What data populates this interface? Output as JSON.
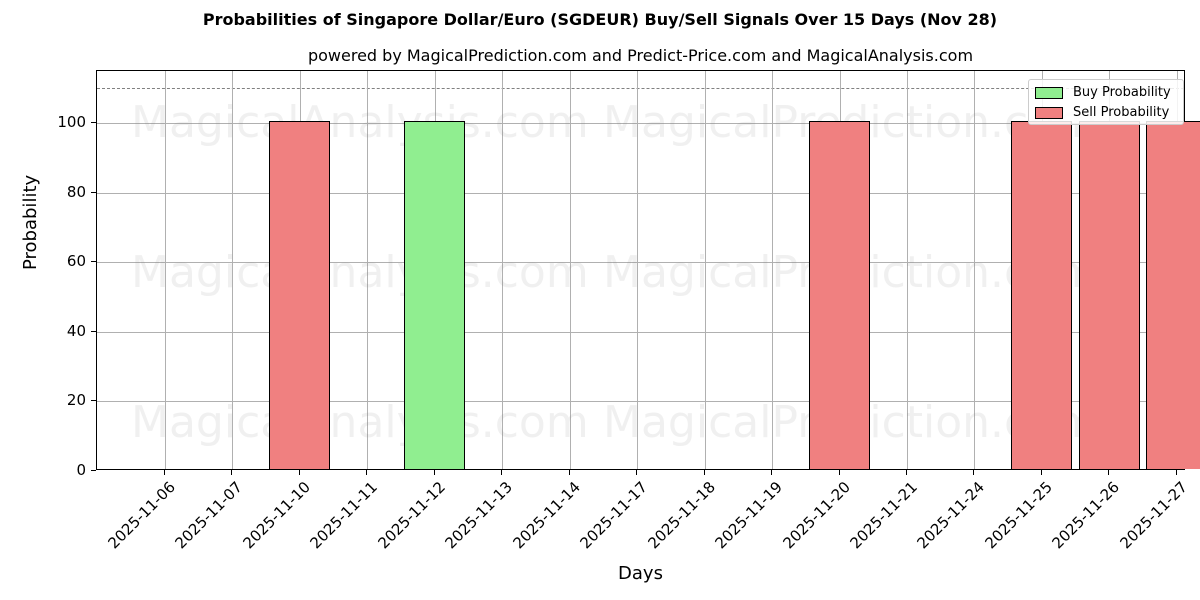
{
  "title": "Probabilities of Singapore Dollar/Euro (SGDEUR) Buy/Sell Signals Over 15 Days (Nov 28)",
  "subtitle": "powered by MagicalPrediction.com and Predict-Price.com and MagicalAnalysis.com",
  "watermarks": [
    "MagicalAnalysis.com",
    "MagicalPrediction.com"
  ],
  "legend": {
    "buy_label": "Buy Probability",
    "sell_label": "Sell Probability"
  },
  "colors": {
    "buy": "#90ee90",
    "sell": "#f08080",
    "grid": "#b0b0b0",
    "reference_line": "#808080"
  },
  "chart_data": {
    "type": "bar",
    "title": "Probabilities of Singapore Dollar/Euro (SGDEUR) Buy/Sell Signals Over 15 Days (Nov 28)",
    "subtitle": "powered by MagicalPrediction.com and Predict-Price.com and MagicalAnalysis.com",
    "xlabel": "Days",
    "ylabel": "Probability",
    "ylim": [
      0,
      115
    ],
    "yticks": [
      0,
      20,
      40,
      60,
      80,
      100
    ],
    "reference_line": 110,
    "grid": true,
    "legend_position": "upper right",
    "categories": [
      "2025-11-06",
      "2025-11-07",
      "2025-11-10",
      "2025-11-11",
      "2025-11-12",
      "2025-11-13",
      "2025-11-14",
      "2025-11-17",
      "2025-11-18",
      "2025-11-19",
      "2025-11-20",
      "2025-11-21",
      "2025-11-24",
      "2025-11-25",
      "2025-11-26",
      "2025-11-27"
    ],
    "series": [
      {
        "name": "Buy Probability",
        "color": "#90ee90",
        "values": [
          0,
          0,
          0,
          0,
          100,
          0,
          0,
          0,
          0,
          0,
          0,
          0,
          0,
          0,
          0,
          0
        ]
      },
      {
        "name": "Sell Probability",
        "color": "#f08080",
        "values": [
          0,
          0,
          100,
          0,
          0,
          0,
          0,
          0,
          0,
          0,
          100,
          0,
          0,
          100,
          100,
          100
        ]
      }
    ]
  }
}
